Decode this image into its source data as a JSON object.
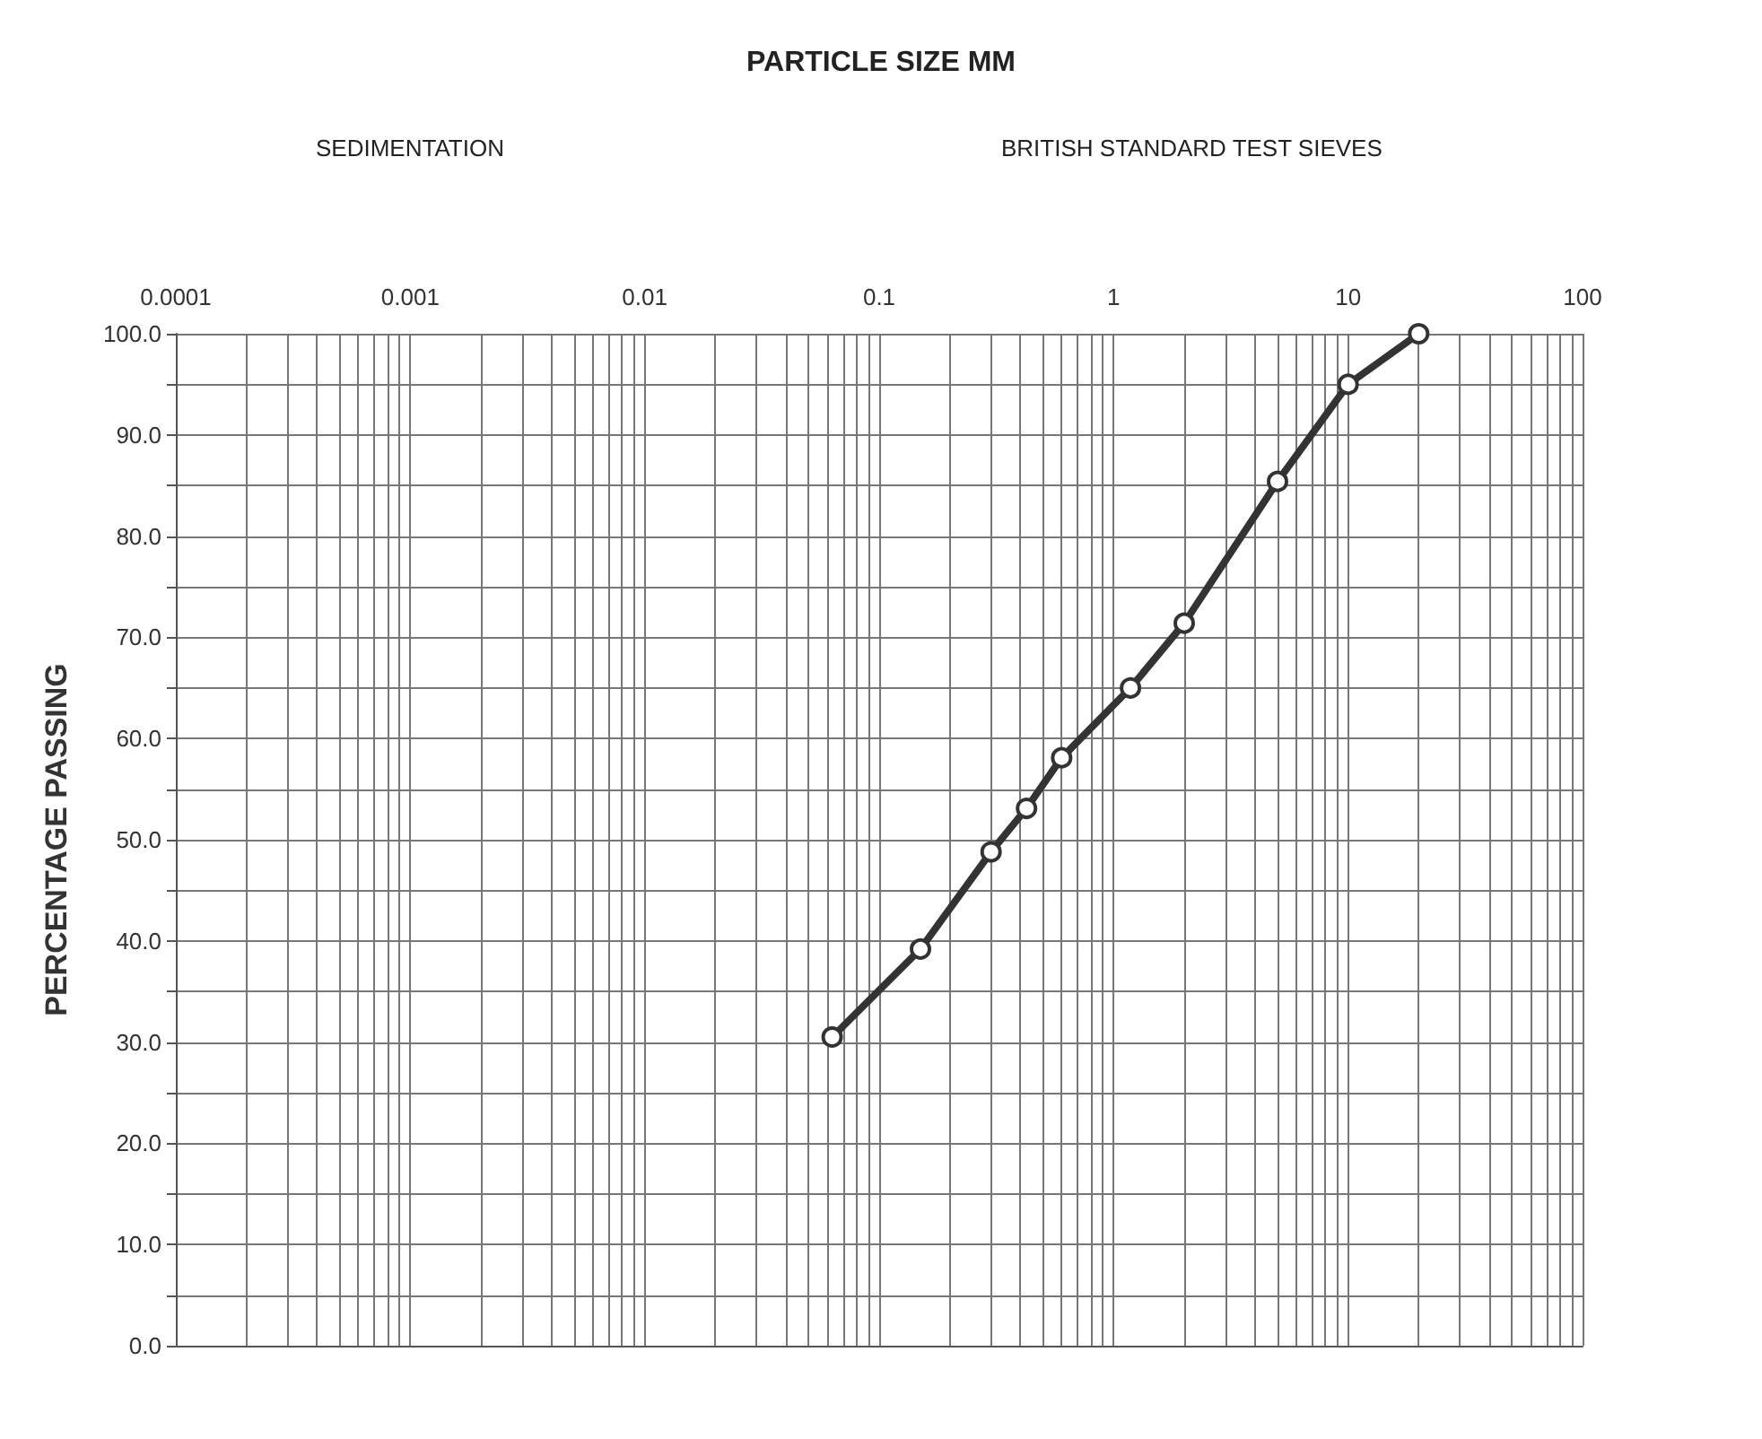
{
  "chart_data": {
    "type": "line",
    "title": "PARTICLE SIZE MM",
    "ylabel": "PERCENTAGE PASSING",
    "annotations": [
      "SEDIMENTATION",
      "BRITISH STANDARD TEST SIEVES"
    ],
    "log": "x",
    "xlim": [
      0.0001,
      100
    ],
    "ylim": [
      0,
      100
    ],
    "xticks": [
      {
        "value": 0.0001,
        "label": "0.0001"
      },
      {
        "value": 0.0002,
        "label": null
      },
      {
        "value": 0.0003,
        "label": null
      },
      {
        "value": 0.0004,
        "label": null
      },
      {
        "value": 0.0005,
        "label": null
      },
      {
        "value": 0.0006,
        "label": null
      },
      {
        "value": 0.0007,
        "label": null
      },
      {
        "value": 0.0008,
        "label": null
      },
      {
        "value": 0.0009,
        "label": null
      },
      {
        "value": 0.001,
        "label": "0.001"
      },
      {
        "value": 0.002,
        "label": null
      },
      {
        "value": 0.003,
        "label": null
      },
      {
        "value": 0.004,
        "label": null
      },
      {
        "value": 0.005,
        "label": null
      },
      {
        "value": 0.006,
        "label": null
      },
      {
        "value": 0.007,
        "label": null
      },
      {
        "value": 0.008,
        "label": null
      },
      {
        "value": 0.009,
        "label": null
      },
      {
        "value": 0.01,
        "label": "0.01"
      },
      {
        "value": 0.02,
        "label": null
      },
      {
        "value": 0.03,
        "label": null
      },
      {
        "value": 0.04,
        "label": null
      },
      {
        "value": 0.05,
        "label": null
      },
      {
        "value": 0.06,
        "label": null
      },
      {
        "value": 0.07,
        "label": null
      },
      {
        "value": 0.08,
        "label": null
      },
      {
        "value": 0.09,
        "label": null
      },
      {
        "value": 0.1,
        "label": "0.1"
      },
      {
        "value": 0.2,
        "label": null
      },
      {
        "value": 0.3,
        "label": null
      },
      {
        "value": 0.4,
        "label": null
      },
      {
        "value": 0.5,
        "label": null
      },
      {
        "value": 0.6,
        "label": null
      },
      {
        "value": 0.7,
        "label": null
      },
      {
        "value": 0.8,
        "label": null
      },
      {
        "value": 0.9,
        "label": null
      },
      {
        "value": 1,
        "label": "1"
      },
      {
        "value": 2,
        "label": null
      },
      {
        "value": 3,
        "label": null
      },
      {
        "value": 4,
        "label": null
      },
      {
        "value": 5,
        "label": null
      },
      {
        "value": 6,
        "label": null
      },
      {
        "value": 7,
        "label": null
      },
      {
        "value": 8,
        "label": null
      },
      {
        "value": 9,
        "label": null
      },
      {
        "value": 10,
        "label": "10"
      },
      {
        "value": 20,
        "label": null
      },
      {
        "value": 30,
        "label": null
      },
      {
        "value": 40,
        "label": null
      },
      {
        "value": 50,
        "label": null
      },
      {
        "value": 60,
        "label": null
      },
      {
        "value": 70,
        "label": null
      },
      {
        "value": 80,
        "label": null
      },
      {
        "value": 90,
        "label": null
      },
      {
        "value": 100,
        "label": "100"
      }
    ],
    "yticks": [
      {
        "value": 0,
        "label": "0.0"
      },
      {
        "value": 5,
        "label": null
      },
      {
        "value": 10,
        "label": "10.0"
      },
      {
        "value": 15,
        "label": null
      },
      {
        "value": 20,
        "label": "20.0"
      },
      {
        "value": 25,
        "label": null
      },
      {
        "value": 30,
        "label": "30.0"
      },
      {
        "value": 35,
        "label": null
      },
      {
        "value": 40,
        "label": "40.0"
      },
      {
        "value": 45,
        "label": null
      },
      {
        "value": 50,
        "label": "50.0"
      },
      {
        "value": 55,
        "label": null
      },
      {
        "value": 60,
        "label": "60.0"
      },
      {
        "value": 65,
        "label": null
      },
      {
        "value": 70,
        "label": "70.0"
      },
      {
        "value": 75,
        "label": null
      },
      {
        "value": 80,
        "label": "80.0"
      },
      {
        "value": 85,
        "label": null
      },
      {
        "value": 90,
        "label": "90.0"
      },
      {
        "value": 95,
        "label": null
      },
      {
        "value": 100,
        "label": "100.0"
      }
    ],
    "grid": true,
    "marker": "circle",
    "line_style": "solid",
    "x": [
      0.063,
      0.15,
      0.3,
      0.425,
      0.6,
      1.18,
      2,
      5,
      10,
      20
    ],
    "series": [
      {
        "color": "#333333",
        "values": [
          30.5,
          39.2,
          48.8,
          53.1,
          58.1,
          65,
          71.4,
          85.4,
          95,
          100
        ]
      }
    ]
  }
}
